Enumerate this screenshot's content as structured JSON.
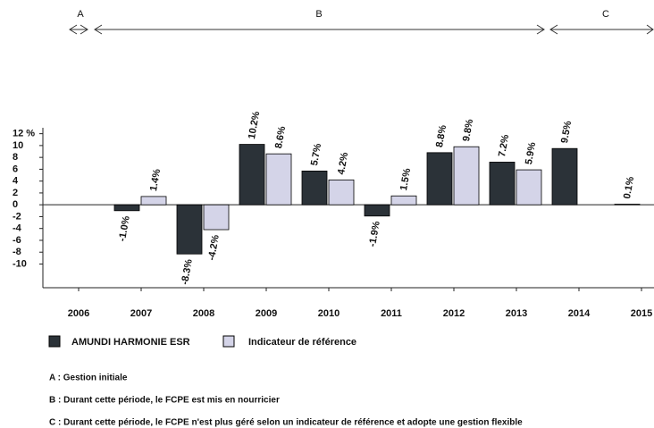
{
  "chart_data": {
    "type": "bar",
    "periods": [
      {
        "label": "A"
      },
      {
        "label": "B"
      },
      {
        "label": "C"
      }
    ],
    "categories": [
      "2006",
      "2007",
      "2008",
      "2009",
      "2010",
      "2011",
      "2012",
      "2013",
      "2014",
      "2015"
    ],
    "series": [
      {
        "name": "AMUNDI HARMONIE ESR",
        "color": "#2b3238",
        "values": [
          null,
          -1.0,
          -8.3,
          10.2,
          5.7,
          -1.9,
          8.8,
          7.2,
          9.5,
          0.1
        ],
        "value_labels": [
          null,
          "-1.0%",
          "-8.3%",
          "10.2%",
          "5.7%",
          "-1.9%",
          "8.8%",
          "7.2%",
          "9.5%",
          "0.1%"
        ]
      },
      {
        "name": "Indicateur de référence",
        "color": "#d4d4e8",
        "values": [
          null,
          1.4,
          -4.2,
          8.6,
          4.2,
          1.5,
          9.8,
          5.9,
          null,
          null
        ],
        "value_labels": [
          null,
          "1.4%",
          "-4.2%",
          "8.6%",
          "4.2%",
          "1.5%",
          "9.8%",
          "5.9%",
          null,
          null
        ]
      }
    ],
    "ylim": [
      -14,
      13
    ],
    "yticks": [
      -10,
      -8,
      -6,
      -4,
      -2,
      0,
      2,
      4,
      6,
      8,
      10,
      {
        "value": 12,
        "label": "12 %"
      }
    ],
    "notes": [
      "A : Gestion initiale",
      "B : Durant cette période, le FCPE est mis en nourricier",
      "C : Durant cette période, le FCPE n'est plus géré selon un indicateur de référence et adopte une gestion flexible"
    ]
  }
}
